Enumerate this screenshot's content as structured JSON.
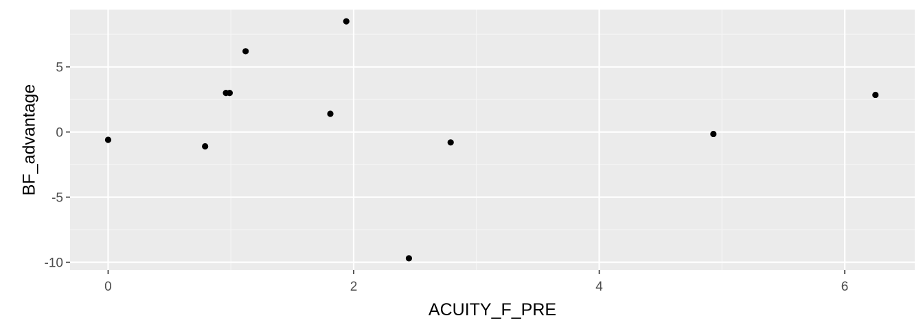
{
  "chart_data": {
    "type": "scatter",
    "title": "",
    "xlabel": "ACUITY_F_PRE",
    "ylabel": "BF_advantage",
    "xlim": [
      -0.31,
      6.57
    ],
    "ylim": [
      -10.6,
      9.4
    ],
    "x_ticks": [
      0,
      2,
      4,
      6
    ],
    "x_tick_labels": [
      "0",
      "2",
      "4",
      "6"
    ],
    "y_ticks": [
      -10,
      -5,
      0,
      5
    ],
    "y_tick_labels": [
      "-10",
      "-5",
      "0",
      "5"
    ],
    "grid": true,
    "legend": "none",
    "points": [
      {
        "x": 0.0,
        "y": -0.6
      },
      {
        "x": 0.79,
        "y": -1.1
      },
      {
        "x": 0.96,
        "y": 3.0
      },
      {
        "x": 0.99,
        "y": 3.0
      },
      {
        "x": 1.12,
        "y": 6.2
      },
      {
        "x": 1.81,
        "y": 1.4
      },
      {
        "x": 1.94,
        "y": 8.5
      },
      {
        "x": 2.45,
        "y": -9.7
      },
      {
        "x": 2.79,
        "y": -0.8
      },
      {
        "x": 4.93,
        "y": -0.15
      },
      {
        "x": 6.25,
        "y": 2.85
      }
    ]
  },
  "colors": {
    "panel_background": "#ebebeb",
    "grid_major": "#ffffff",
    "grid_minor": "#f5f5f5",
    "point": "#000000",
    "tick": "#333333"
  }
}
